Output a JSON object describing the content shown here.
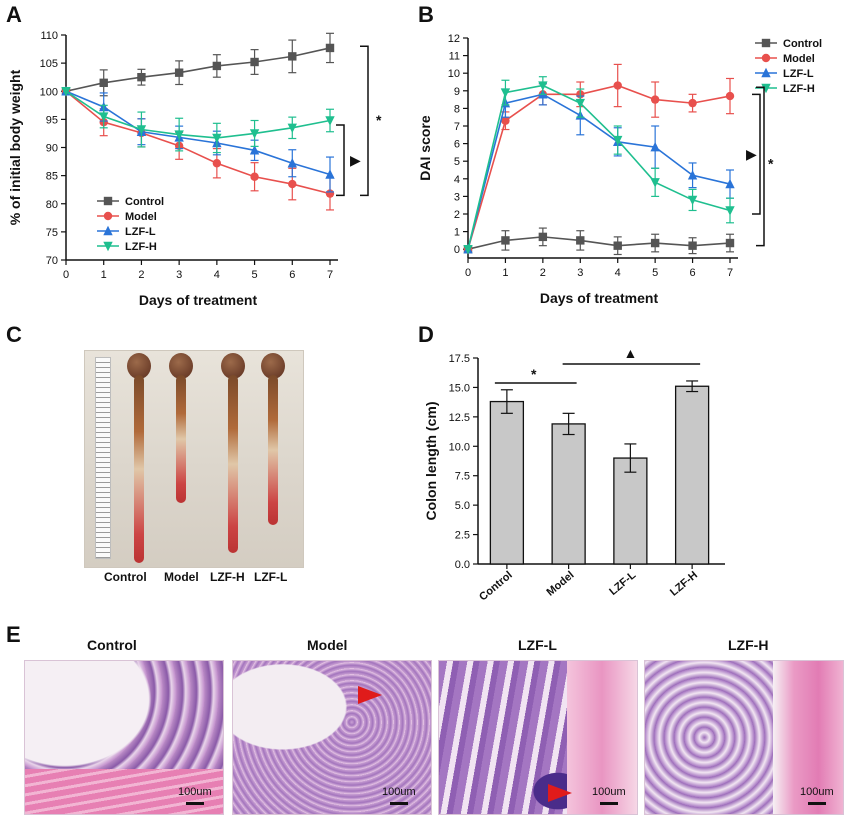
{
  "panels": {
    "a": "A",
    "b": "B",
    "c": "C",
    "d": "D",
    "e": "E"
  },
  "chart_data": [
    {
      "type": "line",
      "panel": "A",
      "xlabel": "Days of treatment",
      "ylabel": "% of initial body weight",
      "x": [
        0,
        1,
        2,
        3,
        4,
        5,
        6,
        7
      ],
      "xlim": [
        0,
        7
      ],
      "ylim": [
        70,
        110
      ],
      "yticks": [
        70,
        75,
        80,
        85,
        90,
        95,
        100,
        105,
        110
      ],
      "series": [
        {
          "name": "Control",
          "color": "#555555",
          "marker": "square",
          "values": [
            100,
            101.5,
            102.5,
            103.3,
            104.5,
            105.2,
            106.2,
            107.7
          ],
          "errors": [
            0,
            2.3,
            1.4,
            2.1,
            2.0,
            2.2,
            2.9,
            2.6
          ]
        },
        {
          "name": "Model",
          "color": "#e8504d",
          "marker": "circle",
          "values": [
            100,
            94.5,
            92.6,
            90.3,
            87.2,
            84.8,
            83.5,
            81.8
          ],
          "errors": [
            0,
            2.4,
            2.5,
            2.4,
            2.6,
            2.5,
            2.8,
            2.9
          ]
        },
        {
          "name": "LZF-L",
          "color": "#2a74d8",
          "marker": "triangle-up",
          "values": [
            100,
            97.2,
            92.8,
            91.8,
            90.8,
            89.5,
            87.2,
            85.2
          ],
          "errors": [
            0,
            2.5,
            2.3,
            2.0,
            2.1,
            1.8,
            2.4,
            3.1
          ]
        },
        {
          "name": "LZF-H",
          "color": "#1fbf8f",
          "marker": "triangle-down",
          "values": [
            100,
            95.5,
            93.2,
            92.3,
            91.7,
            92.5,
            93.5,
            94.8
          ],
          "errors": [
            0,
            2.0,
            3.1,
            2.9,
            2.6,
            2.3,
            1.9,
            2.0
          ]
        }
      ],
      "annotations": [
        "*",
        "▶"
      ]
    },
    {
      "type": "line",
      "panel": "B",
      "xlabel": "Days of treatment",
      "ylabel": "DAI score",
      "x": [
        0,
        1,
        2,
        3,
        4,
        5,
        6,
        7
      ],
      "xlim": [
        0,
        7
      ],
      "ylim": [
        -0.5,
        12
      ],
      "yticks": [
        0,
        1,
        2,
        3,
        4,
        5,
        6,
        7,
        8,
        9,
        10,
        11,
        12
      ],
      "series": [
        {
          "name": "Control",
          "color": "#555555",
          "marker": "square",
          "values": [
            0,
            0.5,
            0.7,
            0.5,
            0.2,
            0.35,
            0.2,
            0.35
          ],
          "errors": [
            0,
            0.55,
            0.5,
            0.55,
            0.5,
            0.5,
            0.45,
            0.5
          ]
        },
        {
          "name": "Model",
          "color": "#e8504d",
          "marker": "circle",
          "values": [
            0,
            7.3,
            8.8,
            8.8,
            9.3,
            8.5,
            8.3,
            8.7
          ],
          "errors": [
            0,
            0.5,
            0.6,
            0.7,
            1.2,
            1.0,
            0.5,
            1.0
          ]
        },
        {
          "name": "LZF-L",
          "color": "#2a74d8",
          "marker": "triangle-up",
          "values": [
            0,
            8.3,
            8.8,
            7.6,
            6.1,
            5.8,
            4.2,
            3.7
          ],
          "errors": [
            0,
            0.8,
            0.6,
            1.1,
            0.8,
            1.2,
            0.7,
            0.8
          ]
        },
        {
          "name": "LZF-H",
          "color": "#1fbf8f",
          "marker": "triangle-down",
          "values": [
            0,
            8.9,
            9.3,
            8.3,
            6.2,
            3.8,
            2.8,
            2.2
          ],
          "errors": [
            0,
            0.7,
            0.5,
            0.8,
            0.8,
            0.8,
            0.6,
            0.7
          ]
        }
      ],
      "annotations": [
        "▶",
        "*"
      ]
    },
    {
      "type": "bar",
      "panel": "D",
      "xlabel": "",
      "ylabel": "Colon length (cm)",
      "categories": [
        "Control",
        "Model",
        "LZF-L",
        "LZF-H"
      ],
      "values": [
        13.8,
        11.9,
        9.0,
        15.1
      ],
      "errors": [
        1.0,
        0.9,
        1.2,
        0.45
      ],
      "ylim": [
        0,
        17.5
      ],
      "yticks": [
        0.0,
        2.5,
        5.0,
        7.5,
        10.0,
        12.5,
        15.0,
        17.5
      ],
      "bar_color": "#c8c8c8",
      "annotations": [
        "*",
        "▲"
      ]
    }
  ],
  "photo": {
    "labels": [
      "Control",
      "Model",
      "LZF-H",
      "LZF-L"
    ]
  },
  "histology": {
    "titles": [
      "Control",
      "Model",
      "LZF-L",
      "LZF-H"
    ],
    "scale_label": "100um"
  }
}
